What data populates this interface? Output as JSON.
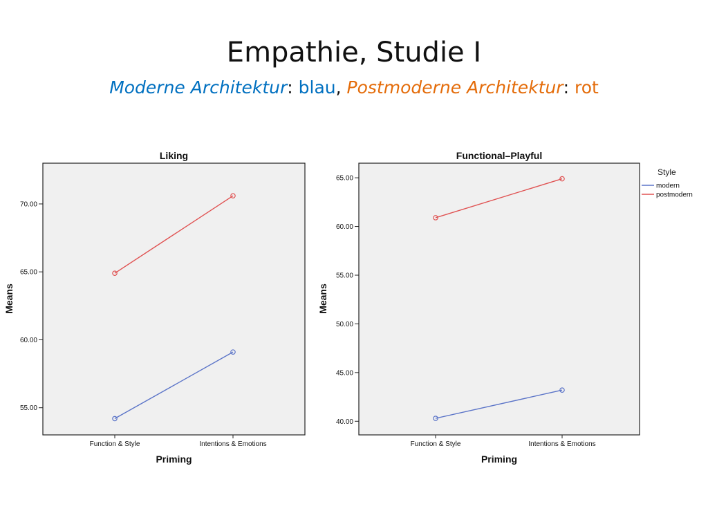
{
  "slide": {
    "title": "Empathie, Studie I",
    "subtitle": {
      "part1": "Moderne Architektur",
      "sep1": ": ",
      "word_blue": "blau",
      "comma": ", ",
      "part2": "Postmoderne Architektur",
      "sep2": ": ",
      "word_red": "rot"
    }
  },
  "colors": {
    "modern": "#5b74c8",
    "postmodern": "#e05252",
    "plot_bg": "#f0f0f0",
    "title_blue": "#0070c0",
    "title_orange": "#e46c0a"
  },
  "chart_data": [
    {
      "type": "line",
      "title": "Liking",
      "xlabel": "Priming",
      "ylabel": "Means",
      "categories": [
        "Function & Style",
        "Intentions & Emotions"
      ],
      "ylim": [
        53.0,
        73.0
      ],
      "yticks": [
        55.0,
        60.0,
        65.0,
        70.0
      ],
      "ytick_labels": [
        "55.00",
        "60.00",
        "65.00",
        "70.00"
      ],
      "series": [
        {
          "name": "modern",
          "values": [
            54.2,
            59.1
          ]
        },
        {
          "name": "postmodern",
          "values": [
            64.9,
            70.6
          ]
        }
      ],
      "grid": false
    },
    {
      "type": "line",
      "title": "Functional–Playful",
      "xlabel": "Priming",
      "ylabel": "Means",
      "categories": [
        "Function & Style",
        "Intentions & Emotions"
      ],
      "ylim": [
        38.6,
        66.5
      ],
      "yticks": [
        40.0,
        45.0,
        50.0,
        55.0,
        60.0,
        65.0
      ],
      "ytick_labels": [
        "40.00",
        "45.00",
        "50.00",
        "55.00",
        "60.00",
        "65.00"
      ],
      "series": [
        {
          "name": "modern",
          "values": [
            40.3,
            43.2
          ]
        },
        {
          "name": "postmodern",
          "values": [
            60.9,
            64.9
          ]
        }
      ],
      "legend": {
        "title": "Style",
        "entries": [
          "modern",
          "postmodern"
        ],
        "placement": "right"
      },
      "grid": false
    }
  ]
}
